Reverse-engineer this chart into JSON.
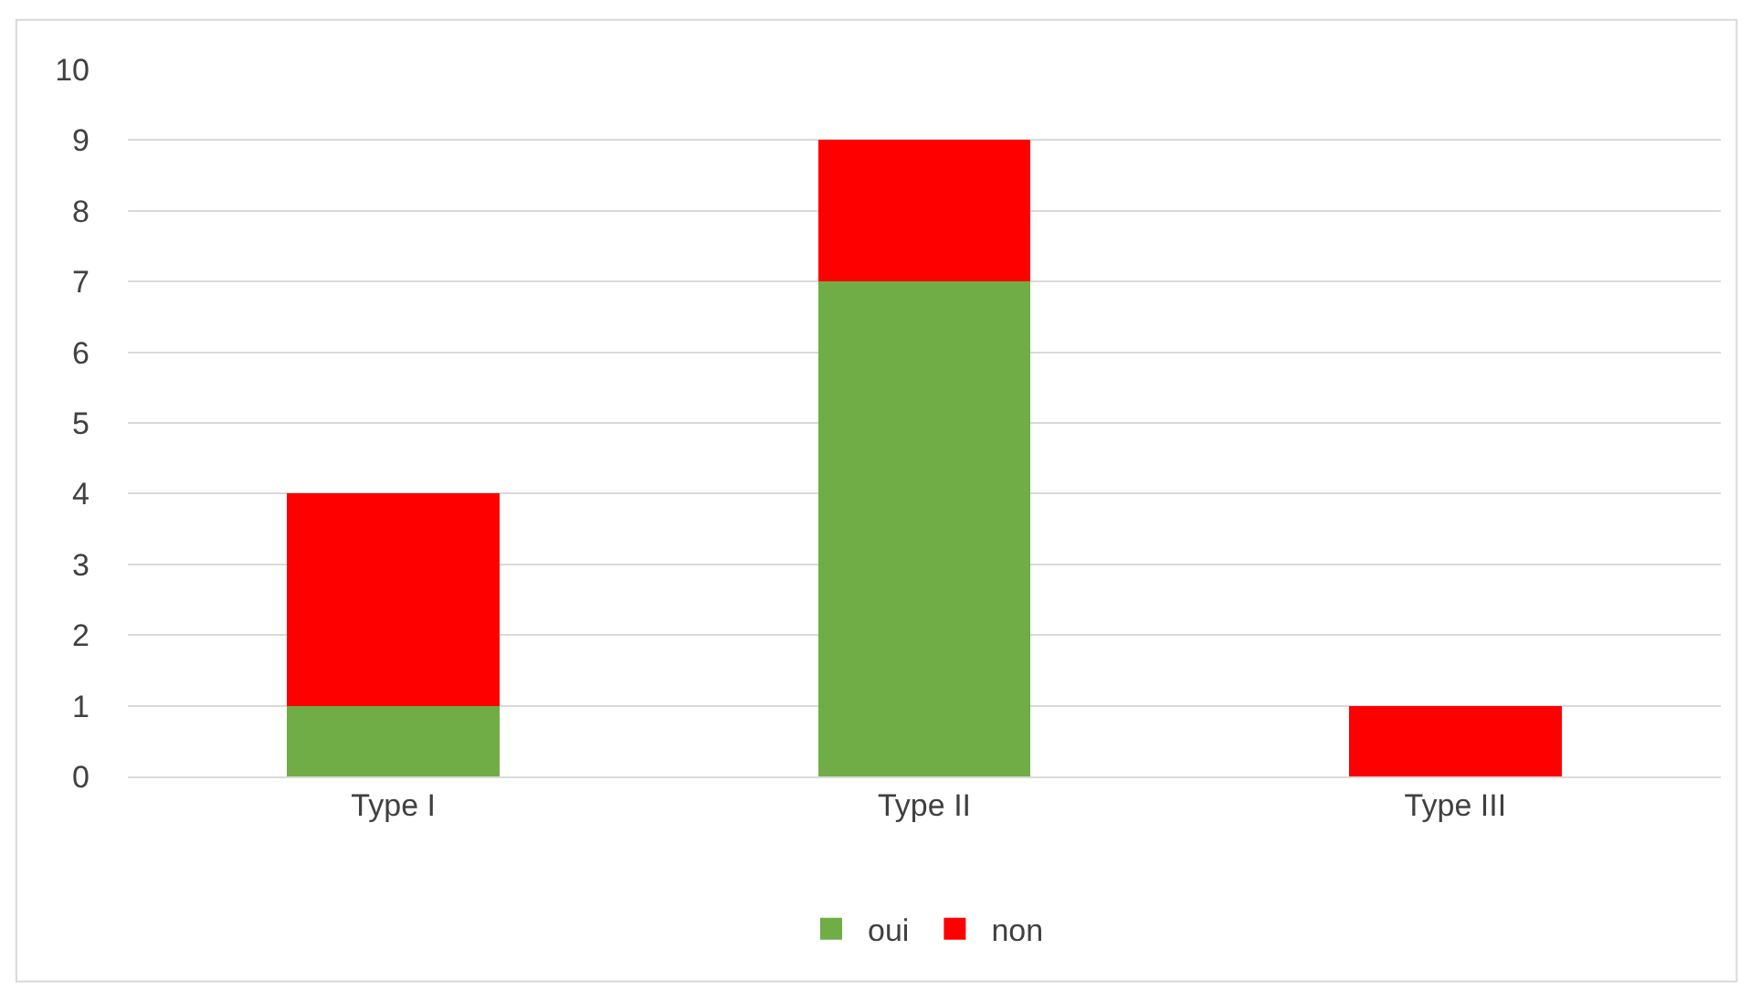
{
  "chart_data": {
    "type": "bar",
    "stacked": true,
    "categories": [
      "Type I",
      "Type II",
      "Type III"
    ],
    "series": [
      {
        "name": "oui",
        "color": "#70ad47",
        "values": [
          1,
          7,
          0
        ]
      },
      {
        "name": "non",
        "color": "#ff0000",
        "values": [
          3,
          2,
          1
        ]
      }
    ],
    "ylim": [
      0,
      10
    ],
    "yticks": [
      0,
      1,
      2,
      3,
      4,
      5,
      6,
      7,
      8,
      9,
      10
    ],
    "grid": "y",
    "legend": "bottom"
  }
}
